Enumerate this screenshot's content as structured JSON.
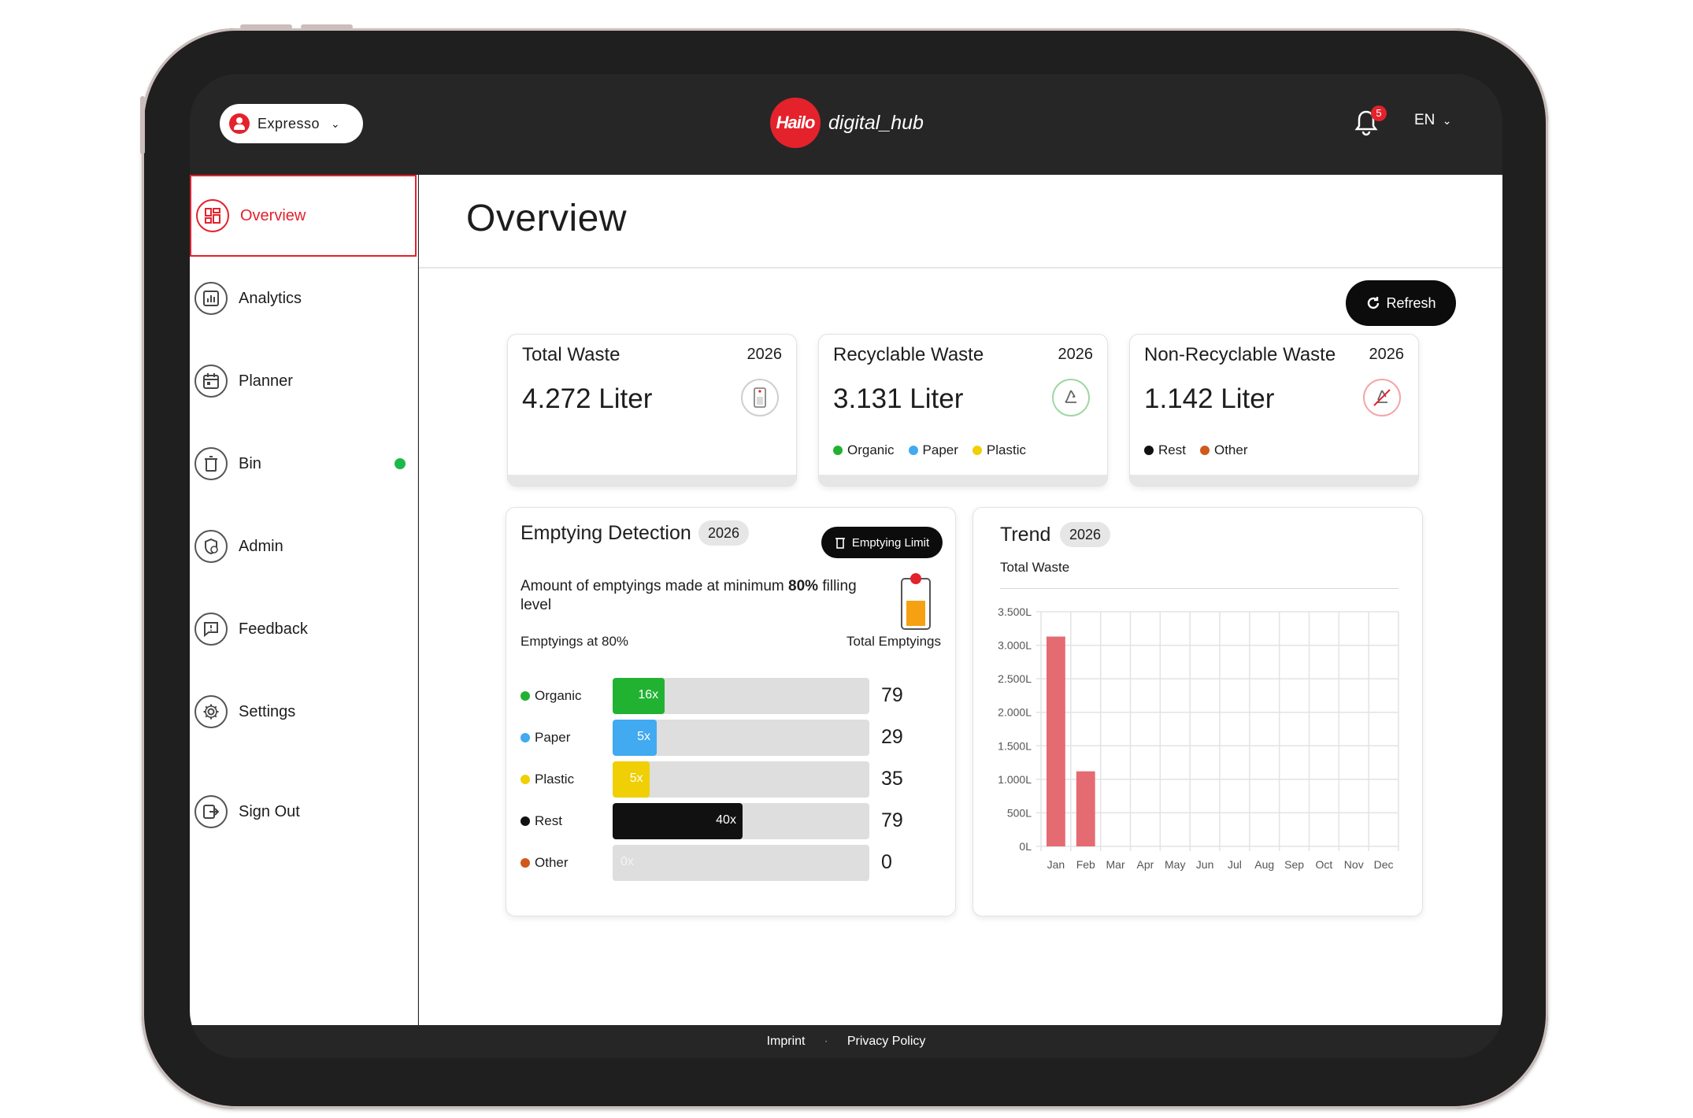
{
  "header": {
    "account_name": "Expresso",
    "logo_mark": "Hailo",
    "logo_text": "digital_hub",
    "notification_count": "5",
    "language": "EN"
  },
  "sidebar": {
    "items": [
      {
        "label": "Overview",
        "icon": "dashboard-icon",
        "active": true
      },
      {
        "label": "Analytics",
        "icon": "analytics-icon"
      },
      {
        "label": "Planner",
        "icon": "calendar-icon"
      },
      {
        "label": "Bin",
        "icon": "bin-icon",
        "status": "online"
      },
      {
        "label": "Admin",
        "icon": "admin-shield-icon"
      },
      {
        "label": "Feedback",
        "icon": "feedback-icon"
      },
      {
        "label": "Settings",
        "icon": "gear-icon"
      },
      {
        "label": "Sign Out",
        "icon": "sign-out-icon"
      }
    ]
  },
  "main": {
    "title": "Overview",
    "refresh_label": "Refresh"
  },
  "stats": [
    {
      "title": "Total Waste",
      "year": "2026",
      "value": "4.272 Liter",
      "icon": "bin-fill-icon",
      "legend": []
    },
    {
      "title": "Recyclable Waste",
      "year": "2026",
      "value": "3.131 Liter",
      "icon": "recycle-icon",
      "legend": [
        {
          "label": "Organic",
          "color": "#21b232"
        },
        {
          "label": "Paper",
          "color": "#41aaf0"
        },
        {
          "label": "Plastic",
          "color": "#f0cf05"
        }
      ]
    },
    {
      "title": "Non-Recyclable Waste",
      "year": "2026",
      "value": "1.142 Liter",
      "icon": "no-recycle-icon",
      "legend": [
        {
          "label": "Rest",
          "color": "#111111"
        },
        {
          "label": "Other",
          "color": "#d0591a"
        }
      ]
    }
  ],
  "emptying": {
    "title": "Emptying Detection",
    "year": "2026",
    "limit_button": "Emptying Limit",
    "description_prefix": "Amount of emptyings made at minimum ",
    "description_bold": "80%",
    "description_suffix": " filling level",
    "col_left": "Emptyings at 80%",
    "col_right": "Total Emptyings",
    "rows": [
      {
        "label": "Organic",
        "color": "#21b232",
        "count": "16x",
        "fraction": 0.203,
        "total": "79"
      },
      {
        "label": "Paper",
        "color": "#41aaf0",
        "count": "5x",
        "fraction": 0.172,
        "total": "29"
      },
      {
        "label": "Plastic",
        "color": "#f0cf05",
        "count": "5x",
        "fraction": 0.143,
        "total": "35"
      },
      {
        "label": "Rest",
        "color": "#111111",
        "count": "40x",
        "fraction": 0.506,
        "total": "79"
      },
      {
        "label": "Other",
        "color": "#d0591a",
        "count": "0x",
        "fraction": 0,
        "total": "0"
      }
    ]
  },
  "trend": {
    "title": "Trend",
    "year": "2026",
    "subtitle": "Total Waste"
  },
  "chart_data": {
    "type": "bar",
    "categories": [
      "Jan",
      "Feb",
      "Mar",
      "Apr",
      "May",
      "Jun",
      "Jul",
      "Aug",
      "Sep",
      "Oct",
      "Nov",
      "Dec"
    ],
    "values": [
      3130,
      1120,
      0,
      0,
      0,
      0,
      0,
      0,
      0,
      0,
      0,
      0
    ],
    "yticks": [
      "0L",
      "500L",
      "1.000L",
      "1.500L",
      "2.000L",
      "2.500L",
      "3.000L",
      "3.500L"
    ],
    "ylim": [
      0,
      3500
    ],
    "bar_color": "#e56b72",
    "grid": true
  },
  "footer": {
    "imprint": "Imprint",
    "privacy": "Privacy Policy"
  }
}
